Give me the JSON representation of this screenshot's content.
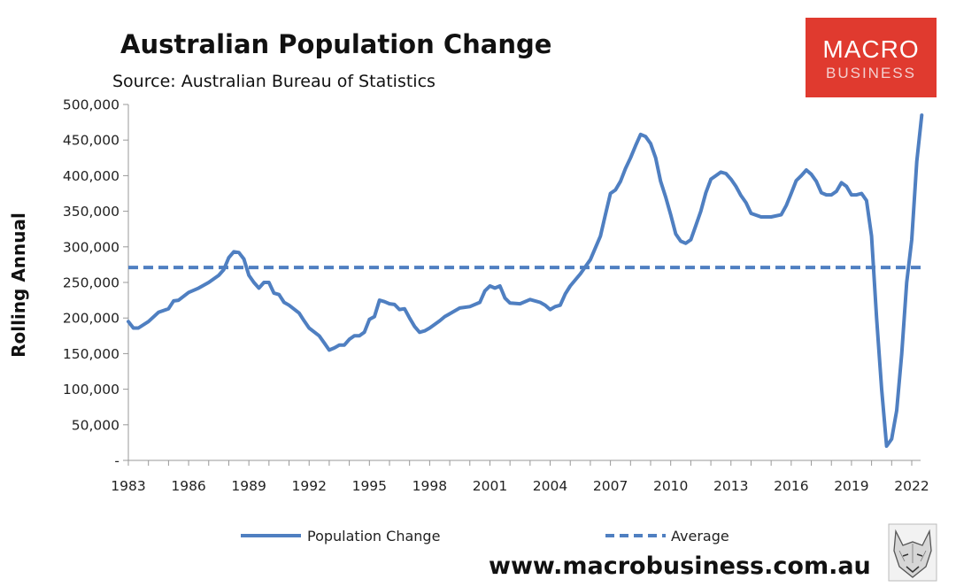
{
  "logo": {
    "line1": "MACRO",
    "line2": "BUSINESS",
    "bg_color": "#e03a2f"
  },
  "footer": {
    "website": "www.macrobusiness.com.au",
    "badge_icon": "wolf-head-icon"
  },
  "colors": {
    "series": "#4f7fc1",
    "axis": "#999999"
  },
  "chart_data": {
    "type": "line",
    "title": "Australian Population Change",
    "subtitle": "Source: Australian Bureau of Statistics",
    "xlabel": "",
    "ylabel": "Rolling Annual",
    "xlim": [
      1983,
      2022.5
    ],
    "ylim": [
      0,
      500000
    ],
    "x_ticks": [
      {
        "value": 1983,
        "label": "1983"
      },
      {
        "value": 1986,
        "label": "1986"
      },
      {
        "value": 1989,
        "label": "1989"
      },
      {
        "value": 1992,
        "label": "1992"
      },
      {
        "value": 1995,
        "label": "1995"
      },
      {
        "value": 1998,
        "label": "1998"
      },
      {
        "value": 2001,
        "label": "2001"
      },
      {
        "value": 2004,
        "label": "2004"
      },
      {
        "value": 2007,
        "label": "2007"
      },
      {
        "value": 2010,
        "label": "2010"
      },
      {
        "value": 2013,
        "label": "2013"
      },
      {
        "value": 2016,
        "label": "2016"
      },
      {
        "value": 2019,
        "label": "2019"
      },
      {
        "value": 2022,
        "label": "2022"
      }
    ],
    "y_ticks": [
      {
        "value": 0,
        "label": "-"
      },
      {
        "value": 50000,
        "label": "50,000"
      },
      {
        "value": 100000,
        "label": "100,000"
      },
      {
        "value": 150000,
        "label": "150,000"
      },
      {
        "value": 200000,
        "label": "200,000"
      },
      {
        "value": 250000,
        "label": "250,000"
      },
      {
        "value": 300000,
        "label": "300,000"
      },
      {
        "value": 350000,
        "label": "350,000"
      },
      {
        "value": 400000,
        "label": "400,000"
      },
      {
        "value": 450000,
        "label": "450,000"
      },
      {
        "value": 500000,
        "label": "500,000"
      }
    ],
    "grid": false,
    "legend": {
      "placement": "bottom"
    },
    "series": [
      {
        "name": "Population Change",
        "style": "solid",
        "color": "#4f7fc1",
        "points": [
          [
            1983.0,
            195000
          ],
          [
            1983.25,
            186000
          ],
          [
            1983.5,
            186000
          ],
          [
            1984.0,
            195000
          ],
          [
            1984.5,
            208000
          ],
          [
            1985.0,
            213000
          ],
          [
            1985.25,
            224000
          ],
          [
            1985.5,
            225000
          ],
          [
            1986.0,
            236000
          ],
          [
            1986.5,
            242000
          ],
          [
            1987.0,
            250000
          ],
          [
            1987.5,
            260000
          ],
          [
            1987.75,
            268000
          ],
          [
            1988.0,
            285000
          ],
          [
            1988.25,
            293000
          ],
          [
            1988.5,
            292000
          ],
          [
            1988.75,
            283000
          ],
          [
            1989.0,
            260000
          ],
          [
            1989.25,
            250000
          ],
          [
            1989.5,
            242000
          ],
          [
            1989.75,
            250000
          ],
          [
            1990.0,
            250000
          ],
          [
            1990.25,
            235000
          ],
          [
            1990.5,
            233000
          ],
          [
            1990.75,
            222000
          ],
          [
            1991.0,
            218000
          ],
          [
            1991.5,
            207000
          ],
          [
            1991.75,
            196000
          ],
          [
            1992.0,
            186000
          ],
          [
            1992.5,
            175000
          ],
          [
            1992.75,
            165000
          ],
          [
            1993.0,
            155000
          ],
          [
            1993.25,
            158000
          ],
          [
            1993.5,
            162000
          ],
          [
            1993.75,
            162000
          ],
          [
            1994.0,
            170000
          ],
          [
            1994.25,
            175000
          ],
          [
            1994.5,
            175000
          ],
          [
            1994.75,
            180000
          ],
          [
            1995.0,
            198000
          ],
          [
            1995.25,
            202000
          ],
          [
            1995.5,
            225000
          ],
          [
            1995.75,
            223000
          ],
          [
            1996.0,
            220000
          ],
          [
            1996.25,
            219000
          ],
          [
            1996.5,
            212000
          ],
          [
            1996.75,
            213000
          ],
          [
            1997.0,
            200000
          ],
          [
            1997.25,
            188000
          ],
          [
            1997.5,
            180000
          ],
          [
            1997.75,
            182000
          ],
          [
            1998.0,
            186000
          ],
          [
            1998.5,
            196000
          ],
          [
            1998.75,
            202000
          ],
          [
            1999.0,
            206000
          ],
          [
            1999.5,
            214000
          ],
          [
            2000.0,
            216000
          ],
          [
            2000.5,
            222000
          ],
          [
            2000.75,
            238000
          ],
          [
            2001.0,
            245000
          ],
          [
            2001.25,
            242000
          ],
          [
            2001.5,
            245000
          ],
          [
            2001.75,
            228000
          ],
          [
            2002.0,
            221000
          ],
          [
            2002.5,
            220000
          ],
          [
            2003.0,
            226000
          ],
          [
            2003.5,
            222000
          ],
          [
            2003.75,
            218000
          ],
          [
            2004.0,
            212000
          ],
          [
            2004.25,
            216000
          ],
          [
            2004.5,
            218000
          ],
          [
            2004.75,
            234000
          ],
          [
            2005.0,
            245000
          ],
          [
            2005.5,
            262000
          ],
          [
            2006.0,
            282000
          ],
          [
            2006.5,
            315000
          ],
          [
            2006.75,
            345000
          ],
          [
            2007.0,
            375000
          ],
          [
            2007.25,
            380000
          ],
          [
            2007.5,
            392000
          ],
          [
            2007.75,
            410000
          ],
          [
            2008.0,
            425000
          ],
          [
            2008.25,
            442000
          ],
          [
            2008.5,
            458000
          ],
          [
            2008.75,
            455000
          ],
          [
            2009.0,
            445000
          ],
          [
            2009.25,
            425000
          ],
          [
            2009.5,
            392000
          ],
          [
            2009.75,
            370000
          ],
          [
            2010.0,
            345000
          ],
          [
            2010.25,
            318000
          ],
          [
            2010.5,
            308000
          ],
          [
            2010.75,
            305000
          ],
          [
            2011.0,
            310000
          ],
          [
            2011.25,
            330000
          ],
          [
            2011.5,
            350000
          ],
          [
            2011.75,
            376000
          ],
          [
            2012.0,
            395000
          ],
          [
            2012.25,
            400000
          ],
          [
            2012.5,
            405000
          ],
          [
            2012.75,
            403000
          ],
          [
            2013.0,
            395000
          ],
          [
            2013.25,
            385000
          ],
          [
            2013.5,
            372000
          ],
          [
            2013.75,
            362000
          ],
          [
            2014.0,
            347000
          ],
          [
            2014.5,
            342000
          ],
          [
            2015.0,
            342000
          ],
          [
            2015.5,
            345000
          ],
          [
            2015.75,
            358000
          ],
          [
            2016.0,
            375000
          ],
          [
            2016.25,
            393000
          ],
          [
            2016.5,
            400000
          ],
          [
            2016.75,
            408000
          ],
          [
            2017.0,
            402000
          ],
          [
            2017.25,
            392000
          ],
          [
            2017.5,
            376000
          ],
          [
            2017.75,
            373000
          ],
          [
            2018.0,
            373000
          ],
          [
            2018.25,
            378000
          ],
          [
            2018.5,
            390000
          ],
          [
            2018.75,
            385000
          ],
          [
            2019.0,
            373000
          ],
          [
            2019.25,
            373000
          ],
          [
            2019.5,
            375000
          ],
          [
            2019.75,
            365000
          ],
          [
            2020.0,
            315000
          ],
          [
            2020.25,
            200000
          ],
          [
            2020.5,
            100000
          ],
          [
            2020.75,
            20000
          ],
          [
            2021.0,
            30000
          ],
          [
            2021.25,
            70000
          ],
          [
            2021.5,
            150000
          ],
          [
            2021.75,
            250000
          ],
          [
            2022.0,
            310000
          ],
          [
            2022.25,
            420000
          ],
          [
            2022.5,
            485000
          ]
        ]
      },
      {
        "name": "Average",
        "style": "dashed",
        "color": "#4f7fc1",
        "points": [
          [
            1983.0,
            271000
          ],
          [
            2022.5,
            271000
          ]
        ]
      }
    ]
  }
}
